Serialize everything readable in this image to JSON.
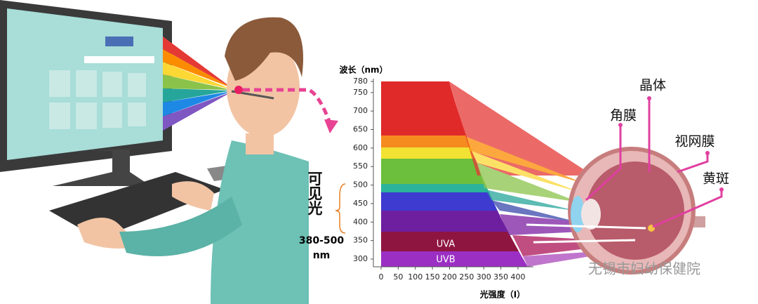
{
  "spectrum": {
    "y_title": "波长（nm）",
    "yticks": [
      780,
      750,
      700,
      650,
      600,
      550,
      500,
      450,
      400,
      350,
      300
    ],
    "x_title": "光强度（I）",
    "xticks": [
      0,
      50,
      100,
      150,
      200,
      250,
      300,
      350,
      400
    ],
    "uva": "UVA",
    "uvb": "UVB"
  },
  "visible_light": {
    "label": "可见光",
    "range": "380-500",
    "unit": "nm"
  },
  "eye_parts": {
    "lens": "晶体",
    "cornea": "角膜",
    "retina": "视网膜",
    "macula": "黄斑"
  },
  "watermark": "无锡市妇幼保健院"
}
